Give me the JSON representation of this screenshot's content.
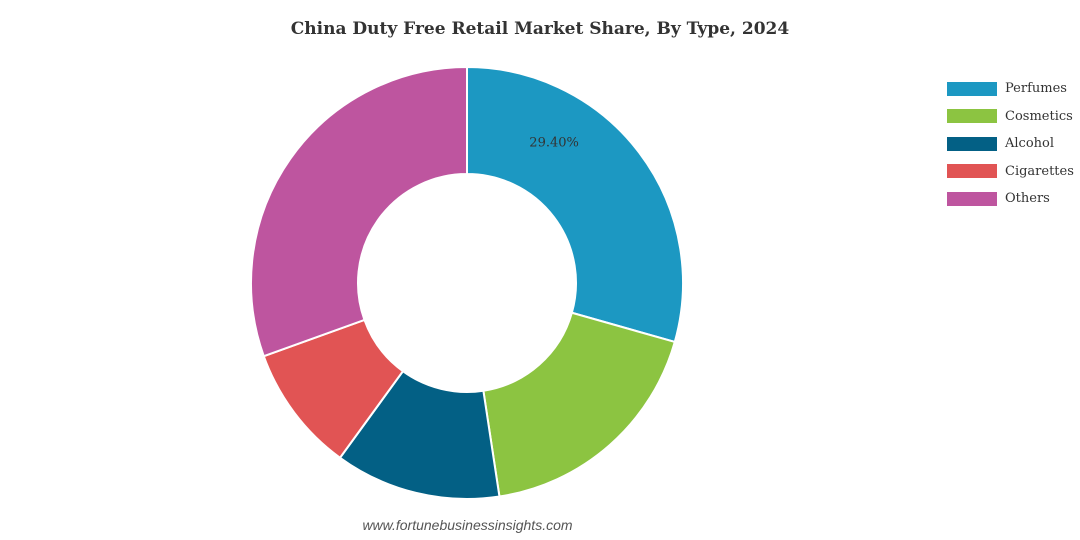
{
  "chart_data": {
    "type": "pie",
    "donut": true,
    "title": "China Duty Free Retail Market Share, By Type, 2024",
    "categories": [
      "Perfumes",
      "Cosmetics",
      "Alcohol",
      "Cigarettes",
      "Others"
    ],
    "values": [
      29.4,
      18.2,
      12.4,
      9.5,
      30.5
    ],
    "labels": [
      "29.40%",
      null,
      null,
      null,
      null
    ],
    "colors": [
      "#1c98c2",
      "#8cc441",
      "#036085",
      "#e15454",
      "#be559f"
    ],
    "legend_position": "right"
  },
  "watermark": "www.fortunebusinessinsights.com"
}
